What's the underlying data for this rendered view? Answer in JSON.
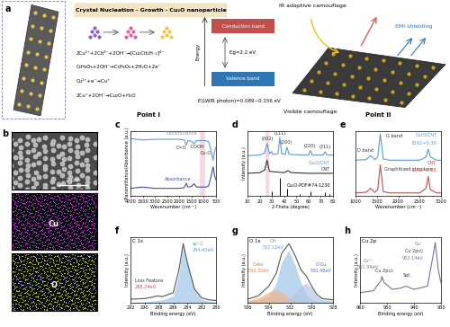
{
  "figure": {
    "schematic": {
      "label": "a",
      "header": "Crystal Nucleation - Growth - Cu₂O nanoparticle",
      "equations": [
        "2Cu²⁺+2Cit³⁻+2OH⁻→[Cu₂Cit₂H₋₂]⁴⁻",
        "C₆H₈O₆+2OH⁻→C₆H₆O₆+2H₂O+2e⁻",
        "Cu²⁺+e⁻→Cu⁺",
        "2Cu⁺+2OH⁻→Cu₂O+H₂O"
      ],
      "energy": "Energy",
      "conduction_band": "Conduction band",
      "valence_band": "Valence band",
      "band_gap": "Eg=2.2 eV",
      "photon_energy": "E(LWIR photon)=0.089~0.156 eV",
      "point_1": "Point I",
      "point_2": "Point II",
      "ir": "IR adaptive camouflage",
      "emi": "EMI shielding",
      "visible": "Visible camouflage"
    },
    "sem": {
      "label": "b",
      "scale_bar": "2 μm",
      "maps": [
        "Cu",
        "O"
      ]
    }
  },
  "chart_data": [
    {
      "label": "c",
      "type": "line",
      "xlabel": "Wavenumber (cm⁻¹)",
      "ylabel": "Transmittance/Absorbance (a.u.)",
      "xlim": [
        4000,
        500
      ],
      "xticks": [
        4000,
        3500,
        3000,
        2500,
        2000,
        1500,
        1000,
        500
      ],
      "ylim": [
        0,
        1
      ],
      "tick_labels": "x",
      "highlight_x": [
        1150,
        950
      ],
      "x": [
        4000,
        3500,
        3000,
        2500,
        2000,
        1800,
        1720,
        1650,
        1500,
        1400,
        1300,
        1100,
        900,
        800,
        700,
        620,
        550,
        500
      ],
      "series": [
        {
          "color": "#5b9bd5",
          "values": [
            0.88,
            0.86,
            0.87,
            0.87,
            0.87,
            0.86,
            0.78,
            0.85,
            0.84,
            0.8,
            0.85,
            0.85,
            0.85,
            0.83,
            0.7,
            0.55,
            0.7,
            0.75
          ]
        },
        {
          "color": "#3f4f9f",
          "values": [
            0.12,
            0.14,
            0.12,
            0.12,
            0.12,
            0.13,
            0.2,
            0.14,
            0.15,
            0.19,
            0.14,
            0.14,
            0.14,
            0.16,
            0.3,
            0.45,
            0.3,
            0.25
          ]
        }
      ],
      "annotations": [
        "Transmittance",
        "Absorbance",
        "C=O",
        "-COOH",
        "Cu-O"
      ]
    },
    {
      "label": "d",
      "type": "line",
      "xlabel": "2-Theta (degree)",
      "ylabel": "Intensity (a.u.)",
      "xlim": [
        10,
        80
      ],
      "xticks": [
        10,
        20,
        30,
        40,
        50,
        60,
        70,
        80
      ],
      "ylim": [
        0,
        1
      ],
      "tick_labels": "x",
      "highlight_x": [
        24.5,
        27.5
      ],
      "series": [
        {
          "color": "#5b9bd5",
          "x": [
            10,
            20,
            24,
            26,
            28,
            29.6,
            31,
            35,
            36.4,
            38,
            41,
            42.3,
            44,
            55,
            60,
            61.4,
            63,
            72,
            73.5,
            75,
            80
          ],
          "values": [
            0.62,
            0.63,
            0.66,
            0.8,
            0.65,
            0.68,
            0.64,
            0.65,
            0.9,
            0.65,
            0.64,
            0.75,
            0.64,
            0.63,
            0.63,
            0.7,
            0.63,
            0.63,
            0.68,
            0.63,
            0.63
          ]
        },
        {
          "color": "#333333",
          "x": [
            10,
            20,
            24,
            26,
            28,
            40,
            43,
            46,
            60,
            80
          ],
          "values": [
            0.35,
            0.36,
            0.4,
            0.55,
            0.38,
            0.36,
            0.39,
            0.36,
            0.35,
            0.35
          ]
        },
        {
          "type": "stem",
          "color": "#000000",
          "x": [
            29.6,
            36.4,
            42.3,
            52.5,
            61.4,
            73.5,
            77.4
          ],
          "values": [
            0.08,
            0.28,
            0.12,
            0.03,
            0.08,
            0.06,
            0.03
          ]
        }
      ],
      "annotations": [
        "(002)",
        "(111)",
        "(200)",
        "(220)",
        "(311)",
        "Cu₂O/CNT",
        "CNT",
        "Cu₂O-PDF#74-1230"
      ]
    },
    {
      "label": "e",
      "type": "line",
      "xlabel": "Wavenumber (cm⁻¹)",
      "xlim": [
        1000,
        3000
      ],
      "xticks": [
        1000,
        1500,
        2000,
        2500,
        3000
      ],
      "ylim": [
        0,
        1
      ],
      "tick_labels": "x",
      "x": [
        1000,
        1250,
        1350,
        1450,
        1520,
        1580,
        1650,
        1800,
        2500,
        2650,
        2700,
        2750,
        2900,
        3000
      ],
      "series": [
        {
          "color": "#5b9bd5",
          "values": [
            0.55,
            0.56,
            0.62,
            0.56,
            0.6,
            0.95,
            0.57,
            0.55,
            0.55,
            0.6,
            0.72,
            0.6,
            0.55,
            0.55
          ]
        },
        {
          "color": "#c0504d",
          "values": [
            0.05,
            0.06,
            0.12,
            0.06,
            0.1,
            0.48,
            0.07,
            0.05,
            0.05,
            0.12,
            0.3,
            0.1,
            0.05,
            0.05
          ]
        }
      ],
      "annotations": [
        "D band",
        "G band",
        "Cu₂O/CNT",
        "ID/IG=0.30",
        "Graphitized structure",
        "CNT",
        "ID/IG=0.28"
      ]
    },
    {
      "label": "f",
      "type": "line",
      "title": "C 1s",
      "xlabel": "Binding energy (eV)",
      "ylabel": "Intensity (a.u.)",
      "xlim": [
        292,
        280
      ],
      "xticks": [
        292,
        290,
        288,
        286,
        284,
        282,
        280
      ],
      "ylim": [
        0,
        1
      ],
      "tick_labels": "x",
      "x": [
        292,
        290,
        289,
        288.24,
        287.5,
        286,
        285.2,
        284.6,
        284,
        283,
        282,
        281,
        280
      ],
      "series": [
        {
          "type": "area",
          "color": "#9ec5e8",
          "values": [
            0.0,
            0.01,
            0.02,
            0.03,
            0.04,
            0.1,
            0.45,
            0.88,
            0.58,
            0.18,
            0.05,
            0.02,
            0.01
          ]
        },
        {
          "color": "#555555",
          "values": [
            0.05,
            0.06,
            0.08,
            0.1,
            0.09,
            0.15,
            0.5,
            0.9,
            0.6,
            0.2,
            0.07,
            0.04,
            0.03
          ]
        }
      ],
      "annotations": [
        "sp²-C",
        "284.60eV",
        "Loss Feature",
        "288.24eV"
      ]
    },
    {
      "label": "g",
      "type": "line",
      "title": "O 1s",
      "xlabel": "Binding energy (eV)",
      "ylabel": "Intensity (a.u.)",
      "xlim": [
        536,
        528
      ],
      "xticks": [
        536,
        534,
        532,
        530,
        528
      ],
      "ylim": [
        0,
        1
      ],
      "tick_labels": "x",
      "x": [
        536,
        535,
        534,
        533.3,
        532.8,
        532.12,
        531.5,
        531,
        530.48,
        530,
        529.5,
        529,
        528
      ],
      "series": [
        {
          "type": "area",
          "color": "#9ec5e8",
          "values": [
            0.02,
            0.04,
            0.1,
            0.3,
            0.62,
            0.8,
            0.55,
            0.3,
            0.12,
            0.05,
            0.02,
            0.01,
            0.01
          ]
        },
        {
          "type": "area",
          "color": "#f4b183",
          "values": [
            0.03,
            0.07,
            0.16,
            0.2,
            0.15,
            0.07,
            0.03,
            0.01,
            0.0,
            0.0,
            0.0,
            0.0,
            0.0
          ]
        },
        {
          "type": "area",
          "color": "#b4c7e7",
          "values": [
            0,
            0,
            0,
            0,
            0.01,
            0.05,
            0.15,
            0.25,
            0.3,
            0.22,
            0.1,
            0.05,
            0.03
          ]
        },
        {
          "color": "#555555",
          "values": [
            0.05,
            0.1,
            0.25,
            0.45,
            0.75,
            0.9,
            0.7,
            0.5,
            0.4,
            0.25,
            0.12,
            0.06,
            0.04
          ]
        }
      ],
      "annotations": [
        "OH",
        "532.12eV",
        "Oabs",
        "533.32eV",
        "O-Cu",
        "530.48eV"
      ]
    },
    {
      "label": "h",
      "type": "line",
      "title": "Cu 2p",
      "xlabel": "Binding energy (eV)",
      "ylabel": "Intensity (a.u.)",
      "xlim": [
        960,
        930
      ],
      "xticks": [
        960,
        950,
        940,
        930
      ],
      "ylim": [
        0,
        1
      ],
      "tick_labels": "x",
      "x": [
        960,
        955,
        952,
        951.94,
        951,
        948,
        945,
        943,
        940,
        935,
        933,
        932.14,
        931,
        930
      ],
      "series": [
        {
          "color": "#7b6fa8",
          "values": [
            0.15,
            0.18,
            0.35,
            0.4,
            0.3,
            0.2,
            0.22,
            0.25,
            0.2,
            0.25,
            0.7,
            0.92,
            0.5,
            0.3
          ]
        }
      ],
      "annotations": [
        "Cu²⁺",
        "951.94eV",
        "Cu 2p₁/₂",
        "Sat.",
        "Cu⁺",
        "Cu 2p₃/₂",
        "932.14eV"
      ]
    }
  ]
}
